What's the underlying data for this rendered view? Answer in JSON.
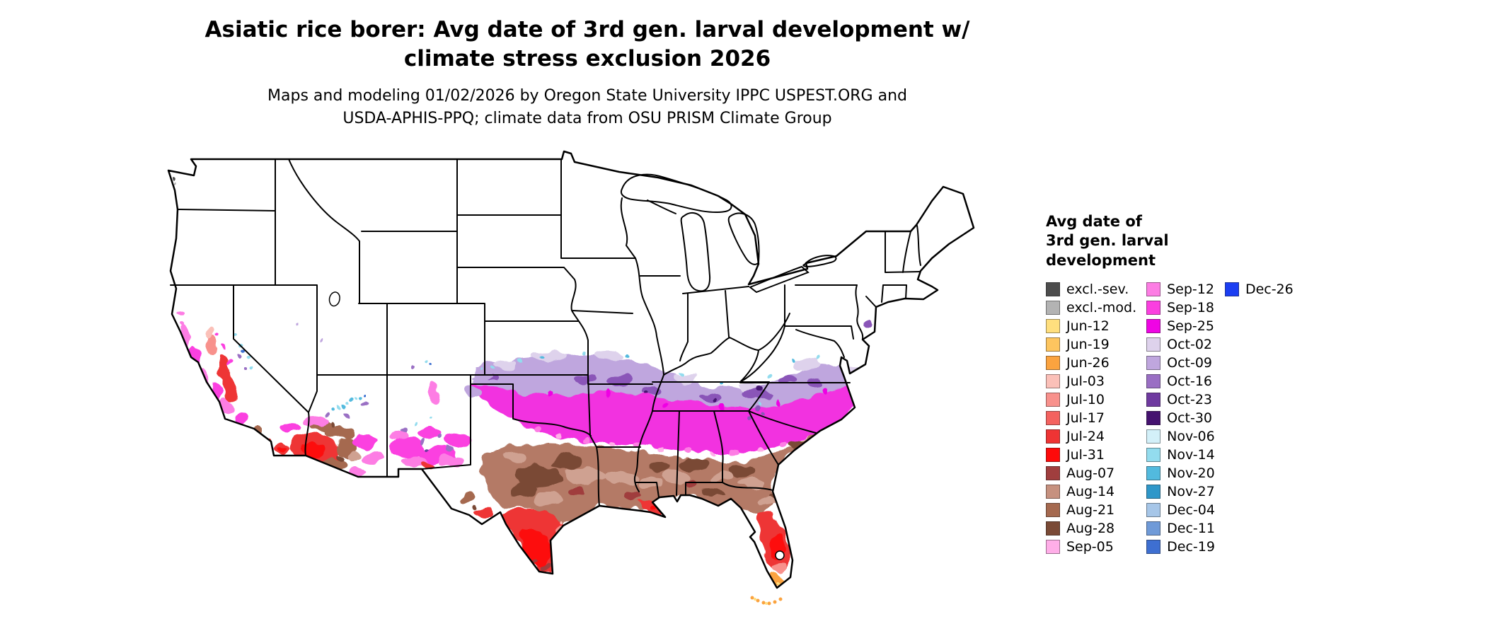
{
  "title": {
    "line1": "Asiatic rice borer: Avg date of 3rd gen. larval development w/",
    "line2": "climate stress exclusion 2026"
  },
  "subtitle": {
    "line1": "Maps and modeling 01/02/2026 by Oregon State University IPPC USPEST.ORG and",
    "line2": "USDA-APHIS-PPQ; climate data from OSU PRISM Climate Group"
  },
  "legend": {
    "title_line1": "Avg date of",
    "title_line2": "3rd gen. larval",
    "title_line3": "development",
    "column1": [
      {
        "label": "excl.-sev.",
        "color": "#4d4d4d"
      },
      {
        "label": "excl.-mod.",
        "color": "#b3b3b3"
      },
      {
        "label": "Jun-12",
        "color": "#ffdf7e"
      },
      {
        "label": "Jun-19",
        "color": "#fdc55f"
      },
      {
        "label": "Jun-26",
        "color": "#fba33f"
      },
      {
        "label": "Jul-03",
        "color": "#fbc0b8"
      },
      {
        "label": "Jul-10",
        "color": "#f8918c"
      },
      {
        "label": "Jul-17",
        "color": "#f4625f"
      },
      {
        "label": "Jul-24",
        "color": "#ee3434"
      },
      {
        "label": "Jul-31",
        "color": "#fd0a0a"
      },
      {
        "label": "Aug-07",
        "color": "#a03e3e"
      },
      {
        "label": "Aug-14",
        "color": "#c6917f"
      },
      {
        "label": "Aug-21",
        "color": "#a5694f"
      },
      {
        "label": "Aug-28",
        "color": "#7a4a36"
      },
      {
        "label": "Sep-05",
        "color": "#ffaee8"
      }
    ],
    "column2": [
      {
        "label": "Sep-12",
        "color": "#fd7de4"
      },
      {
        "label": "Sep-18",
        "color": "#fb3fe0"
      },
      {
        "label": "Sep-25",
        "color": "#ef04e4"
      },
      {
        "label": "Oct-02",
        "color": "#ded2ec"
      },
      {
        "label": "Oct-09",
        "color": "#bfa6de"
      },
      {
        "label": "Oct-16",
        "color": "#9a6fc4"
      },
      {
        "label": "Oct-23",
        "color": "#6f3aa0"
      },
      {
        "label": "Oct-30",
        "color": "#451270"
      },
      {
        "label": "Nov-06",
        "color": "#d3f0f9"
      },
      {
        "label": "Nov-14",
        "color": "#93dcee"
      },
      {
        "label": "Nov-20",
        "color": "#52bade"
      },
      {
        "label": "Nov-27",
        "color": "#2f97c9"
      },
      {
        "label": "Dec-04",
        "color": "#a6c6e8"
      },
      {
        "label": "Dec-11",
        "color": "#6f9ad8"
      },
      {
        "label": "Dec-19",
        "color": "#3e6fd1"
      }
    ],
    "column3": [
      {
        "label": "Dec-26",
        "color": "#1b3ef2"
      }
    ]
  },
  "map": {
    "land_color": "#ffffff",
    "border_color": "#000000",
    "background_color": "#ffffff"
  }
}
